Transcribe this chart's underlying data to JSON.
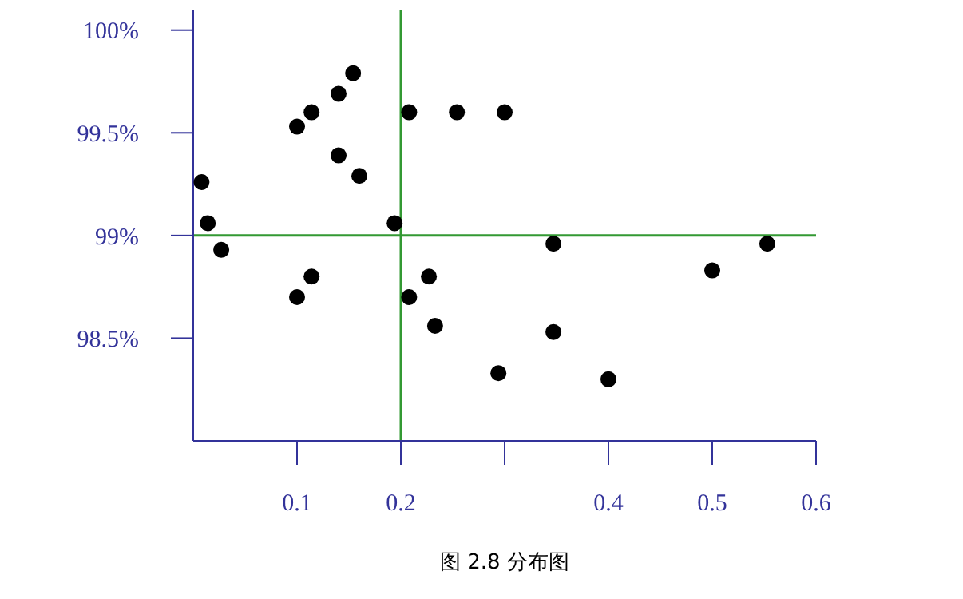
{
  "chart_data": {
    "type": "scatter",
    "marker": "circle",
    "grid": false,
    "x": [
      0.008,
      0.014,
      0.027,
      0.1,
      0.114,
      0.14,
      0.154,
      0.14,
      0.16,
      0.194,
      0.208,
      0.254,
      0.3,
      0.347,
      0.553,
      0.5,
      0.347,
      0.294,
      0.4,
      0.1,
      0.114,
      0.208,
      0.227,
      0.233
    ],
    "series": [
      {
        "color": "#000000",
        "values": [
          99.26,
          99.06,
          98.93,
          99.53,
          99.6,
          99.69,
          99.79,
          99.39,
          99.29,
          99.06,
          99.6,
          99.6,
          99.6,
          98.96,
          98.96,
          98.83,
          98.53,
          98.33,
          98.3,
          98.7,
          98.8,
          98.7,
          98.8,
          98.56
        ]
      }
    ],
    "xlim": [
      0,
      0.6
    ],
    "xticks": [
      0.1,
      0.2,
      {
        "value": 0.3,
        "label": null
      },
      0.4,
      0.5,
      0.6
    ],
    "ylim": [
      98,
      100.1
    ],
    "yticks": [
      {
        "value": 98.5,
        "label": "98.5%"
      },
      {
        "value": 99,
        "label": "99%"
      },
      {
        "value": 99.5,
        "label": "99.5%"
      },
      {
        "value": 100,
        "label": "100%"
      }
    ],
    "ref_lines": [
      {
        "axis": "x",
        "value": 0.2,
        "color": "#339933"
      },
      {
        "axis": "y",
        "value": 99,
        "color": "#339933"
      }
    ],
    "annotations": [
      "图 2.8 分布图"
    ]
  }
}
